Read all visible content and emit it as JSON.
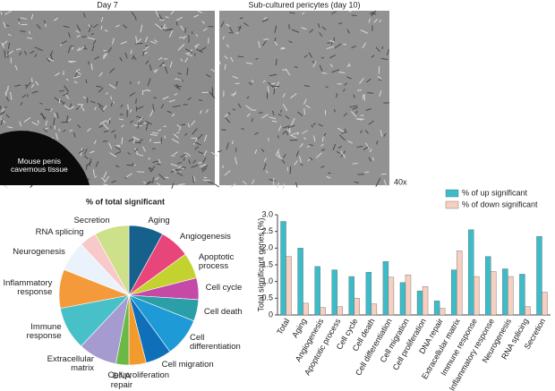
{
  "images": {
    "left_caption": "Day 7",
    "left_label": "Mouse penis\ncavernous tissue",
    "right_caption": "Sub-cultured pericytes (day 10)",
    "magnification": "40x"
  },
  "chart_data": [
    {
      "type": "pie",
      "title": "% of total significant",
      "categories": [
        "Aging",
        "Angiogenesis",
        "Apoptotic\nprocess",
        "Cell cycle",
        "Cell death",
        "Cell\ndifferentiation",
        "Cell migration",
        "Cell proliferation",
        "DNA\nrepair",
        "Extracellular\nmatrix",
        "Immune\nresponse",
        "Inflammatory\nresponse",
        "Neurogenesis",
        "RNA splicing",
        "Secretion"
      ],
      "values": [
        8,
        7,
        6,
        5,
        5,
        9,
        6,
        4,
        3,
        9,
        10,
        9,
        7,
        4,
        8
      ],
      "colors": [
        "#16608c",
        "#e8457a",
        "#c3d22f",
        "#c54aa8",
        "#2b9fa8",
        "#1e9ad6",
        "#0f6fb8",
        "#f39a2c",
        "#6ab845",
        "#a69bd0",
        "#48c0c8",
        "#f49a3a",
        "#eaf3fb",
        "#f9c8c8",
        "#cde08a"
      ]
    },
    {
      "type": "bar",
      "y_label": "Total significant genes (%)",
      "categories": [
        "Total",
        "Aging",
        "Angiogenesis",
        "Apoptotic process",
        "Cell cycle",
        "Cell death",
        "Cell differentiation",
        "Cell migration",
        "Cell proliferation",
        "DNA repair",
        "Extracellular matrix",
        "Immune response",
        "Inflammatory response",
        "Neurogenesis",
        "RNA splicing",
        "Secretion"
      ],
      "series": [
        {
          "name": "% of up significant",
          "color": "#3cbcc8",
          "values": [
            2.8,
            2.0,
            1.45,
            1.35,
            1.15,
            1.28,
            1.6,
            0.97,
            0.72,
            0.42,
            1.35,
            2.55,
            1.75,
            1.38,
            1.22,
            2.35
          ]
        },
        {
          "name": "% of down significant",
          "color": "#f7cfc0",
          "values": [
            1.75,
            0.35,
            0.22,
            0.25,
            0.5,
            0.33,
            1.13,
            1.2,
            0.85,
            0.2,
            1.92,
            1.15,
            1.3,
            1.15,
            0.25,
            0.68
          ]
        }
      ],
      "ylim": [
        0,
        3
      ],
      "yticks": [
        0,
        0.5,
        {
          "value": 1,
          "label": "1.0"
        },
        1.5,
        {
          "value": 2,
          "label": "2.0"
        },
        2.5,
        {
          "value": 3,
          "label": "3.0"
        }
      ],
      "legend": "top-right"
    }
  ]
}
